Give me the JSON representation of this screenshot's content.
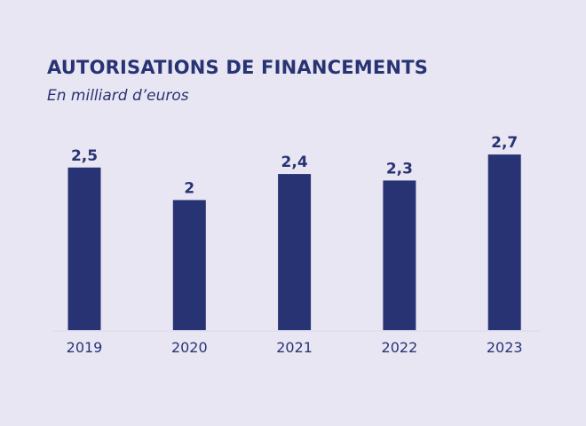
{
  "chart_data": {
    "type": "bar",
    "title": "AUTORISATIONS DE FINANCEMENTS",
    "subtitle": "En milliard d’euros",
    "categories": [
      "2019",
      "2020",
      "2021",
      "2022",
      "2023"
    ],
    "values": [
      2.5,
      2,
      2.4,
      2.3,
      2.7
    ],
    "data_labels": [
      "2,5",
      "2",
      "2,4",
      "2,3",
      "2,7"
    ],
    "xlabel": "",
    "ylabel": "",
    "ylim": [
      0,
      3
    ],
    "grid": false,
    "legend": "none",
    "colors": {
      "bar": "#283374",
      "background": "#e9e6f3",
      "text": "#283374"
    }
  }
}
